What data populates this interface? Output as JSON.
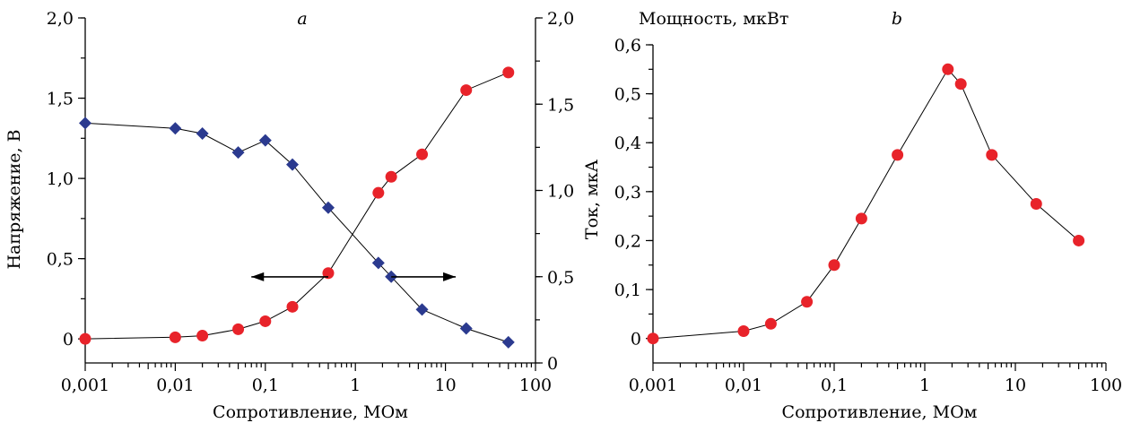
{
  "chart_data": [
    {
      "type": "scatter",
      "panel_label": "a",
      "xscale": "log",
      "xlabel": "Сопротивление, МОм",
      "ylabel": "Напряжение, В",
      "y2label": "Ток, мкА",
      "xlim": [
        0.001,
        100
      ],
      "ylim": [
        -0.15,
        2.0
      ],
      "y2lim": [
        0,
        2.0
      ],
      "x_ticks": [
        "0,001",
        "0,01",
        "0,1",
        "1",
        "10",
        "100"
      ],
      "y_ticks": [
        "0",
        "0,5",
        "1,0",
        "1,5",
        "2,0"
      ],
      "y2_ticks": [
        "0",
        "0,5",
        "1,0",
        "1,5",
        "2,0"
      ],
      "series": [
        {
          "axis": "left",
          "marker": "circle",
          "color": "#e8232a",
          "x": [
            0.001,
            0.01,
            0.02,
            0.05,
            0.1,
            0.2,
            0.5,
            1.8,
            2.5,
            5.5,
            17,
            50
          ],
          "y": [
            0.0,
            0.01,
            0.02,
            0.06,
            0.11,
            0.2,
            0.41,
            0.91,
            1.01,
            1.15,
            1.55,
            1.66
          ]
        },
        {
          "axis": "right",
          "marker": "diamond",
          "color": "#2b3a8f",
          "x": [
            0.001,
            0.01,
            0.02,
            0.05,
            0.1,
            0.2,
            0.5,
            1.8,
            2.5,
            5.5,
            17,
            50
          ],
          "y": [
            1.39,
            1.36,
            1.33,
            1.22,
            1.29,
            1.15,
            0.9,
            0.58,
            0.5,
            0.31,
            0.2,
            0.12
          ]
        }
      ],
      "arrows": [
        {
          "direction": "left",
          "x_from": 0.5,
          "x_to": 0.07,
          "y": 0.42
        },
        {
          "direction": "right",
          "x_from": 2.5,
          "x_to": 13,
          "y": 0.42
        }
      ]
    },
    {
      "type": "scatter",
      "panel_label": "b",
      "xscale": "log",
      "xlabel": "Сопротивление, МОм",
      "ylabel": "Мощность, мкВт",
      "xlim": [
        0.001,
        100
      ],
      "ylim": [
        -0.05,
        0.6
      ],
      "x_ticks": [
        "0,001",
        "0,01",
        "0,1",
        "1",
        "10",
        "100"
      ],
      "y_ticks": [
        "0",
        "0,1",
        "0,2",
        "0,3",
        "0,4",
        "0,5",
        "0,6"
      ],
      "series": [
        {
          "marker": "circle",
          "color": "#e8232a",
          "x": [
            0.001,
            0.01,
            0.02,
            0.05,
            0.1,
            0.2,
            0.5,
            1.8,
            2.5,
            5.5,
            17,
            50
          ],
          "y": [
            0.0,
            0.015,
            0.03,
            0.075,
            0.15,
            0.245,
            0.375,
            0.55,
            0.52,
            0.375,
            0.275,
            0.2
          ]
        }
      ]
    }
  ]
}
